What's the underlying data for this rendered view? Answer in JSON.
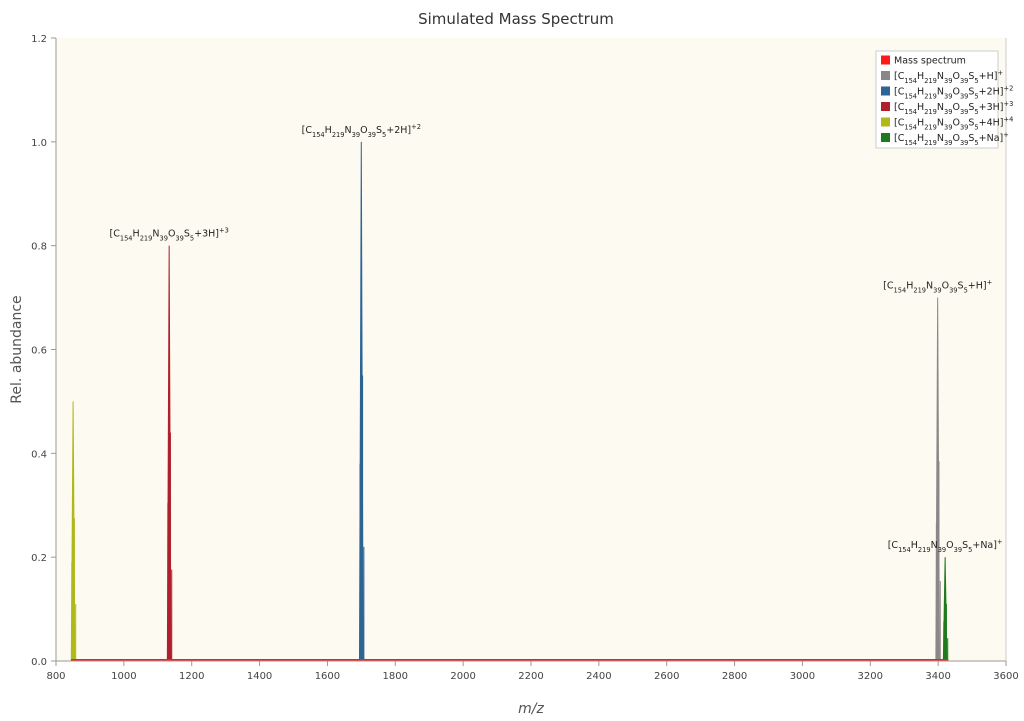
{
  "chart_data": {
    "type": "line",
    "title": "Simulated Mass Spectrum",
    "xlabel": "m/z",
    "ylabel": "Rel. abundance",
    "xlim": [
      800,
      3600
    ],
    "ylim": [
      0,
      1.2
    ],
    "x_ticks": [
      "800",
      "1000",
      "1200",
      "1400",
      "1600",
      "1800",
      "2000",
      "2200",
      "2400",
      "2600",
      "2800",
      "3000",
      "3200",
      "3400",
      "3600"
    ],
    "y_ticks": [
      "0.0",
      "0.2",
      "0.4",
      "0.6",
      "0.8",
      "1.0",
      "1.2"
    ],
    "grid": false,
    "legend_position": "top-right",
    "background_color": "#fdfbf1",
    "baseline_series": {
      "name": "Mass spectrum",
      "color": "#ff1a1a"
    },
    "series": [
      {
        "name_parts": [
          [
            "",
            "["
          ],
          [
            "",
            "C"
          ],
          [
            "sub",
            "154"
          ],
          [
            "",
            "H"
          ],
          [
            "sub",
            "219"
          ],
          [
            "",
            "N"
          ],
          [
            "sub",
            "39"
          ],
          [
            "",
            "O"
          ],
          [
            "sub",
            "39"
          ],
          [
            "",
            "S"
          ],
          [
            "sub",
            "5"
          ],
          [
            "",
            "+H]"
          ],
          [
            "sup",
            "+"
          ]
        ],
        "color": "#888888",
        "x": 3398.6,
        "y": 0.7
      },
      {
        "name_parts": [
          [
            "",
            "["
          ],
          [
            "",
            "C"
          ],
          [
            "sub",
            "154"
          ],
          [
            "",
            "H"
          ],
          [
            "sub",
            "219"
          ],
          [
            "",
            "N"
          ],
          [
            "sub",
            "39"
          ],
          [
            "",
            "O"
          ],
          [
            "sub",
            "39"
          ],
          [
            "",
            "S"
          ],
          [
            "sub",
            "5"
          ],
          [
            "",
            "+2H]"
          ],
          [
            "sup",
            "+2"
          ]
        ],
        "color": "#2c6496",
        "x": 1699.8,
        "y": 1.0
      },
      {
        "name_parts": [
          [
            "",
            "["
          ],
          [
            "",
            "C"
          ],
          [
            "sub",
            "154"
          ],
          [
            "",
            "H"
          ],
          [
            "sub",
            "219"
          ],
          [
            "",
            "N"
          ],
          [
            "sub",
            "39"
          ],
          [
            "",
            "O"
          ],
          [
            "sub",
            "39"
          ],
          [
            "",
            "S"
          ],
          [
            "sub",
            "5"
          ],
          [
            "",
            "+3H]"
          ],
          [
            "sup",
            "+3"
          ]
        ],
        "color": "#b0202c",
        "x": 1133.5,
        "y": 0.8
      },
      {
        "name_parts": [
          [
            "",
            "["
          ],
          [
            "",
            "C"
          ],
          [
            "sub",
            "154"
          ],
          [
            "",
            "H"
          ],
          [
            "sub",
            "219"
          ],
          [
            "",
            "N"
          ],
          [
            "sub",
            "39"
          ],
          [
            "",
            "O"
          ],
          [
            "sub",
            "39"
          ],
          [
            "",
            "S"
          ],
          [
            "sub",
            "5"
          ],
          [
            "",
            "+4H]"
          ],
          [
            "sup",
            "+4"
          ]
        ],
        "color": "#b0b81a",
        "x": 850.4,
        "y": 0.5
      },
      {
        "name_parts": [
          [
            "",
            "["
          ],
          [
            "",
            "C"
          ],
          [
            "sub",
            "154"
          ],
          [
            "",
            "H"
          ],
          [
            "sub",
            "219"
          ],
          [
            "",
            "N"
          ],
          [
            "sub",
            "39"
          ],
          [
            "",
            "O"
          ],
          [
            "sub",
            "39"
          ],
          [
            "",
            "S"
          ],
          [
            "sub",
            "5"
          ],
          [
            "",
            "+Na]"
          ],
          [
            "sup",
            "+"
          ]
        ],
        "color": "#1f7a1f",
        "x": 3420.6,
        "y": 0.2
      }
    ],
    "annotation_series_order": [
      2,
      1,
      0,
      4
    ]
  }
}
